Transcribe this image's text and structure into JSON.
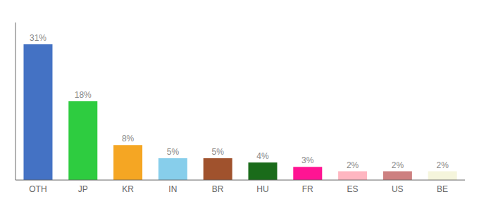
{
  "chart_data": {
    "type": "bar",
    "categories": [
      "OTH",
      "JP",
      "KR",
      "IN",
      "BR",
      "HU",
      "FR",
      "ES",
      "US",
      "BE"
    ],
    "values": [
      31,
      18,
      8,
      5,
      5,
      4,
      3,
      2,
      2,
      2
    ],
    "value_labels": [
      "31%",
      "18%",
      "8%",
      "5%",
      "5%",
      "4%",
      "3%",
      "2%",
      "2%",
      "2%"
    ],
    "colors": [
      "#4472c4",
      "#2ecc40",
      "#f5a623",
      "#87ceeb",
      "#a0522d",
      "#1a6b1a",
      "#ff1493",
      "#ffb6c1",
      "#cd8080",
      "#f5f5dc"
    ],
    "ylim": [
      0,
      36
    ],
    "data_labels": true,
    "tick_labels": "x",
    "grid": false
  }
}
